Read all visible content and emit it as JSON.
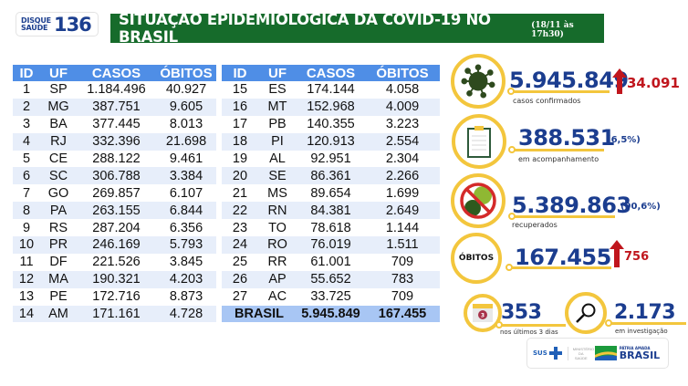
{
  "header": {
    "logo_line1": "DISQUE",
    "logo_line2": "SAÚDE",
    "logo_number": "136",
    "title": "SITUAÇÃO EPIDEMIOLÓGICA DA COVID-19 NO BRASIL",
    "date": "(18/11 às 17h30)"
  },
  "table_headers": {
    "id": "ID",
    "uf": "UF",
    "casos": "CASOS",
    "obitos": "ÓBITOS"
  },
  "left_rows": [
    {
      "id": "1",
      "uf": "SP",
      "casos": "1.184.496",
      "obitos": "40.927"
    },
    {
      "id": "2",
      "uf": "MG",
      "casos": "387.751",
      "obitos": "9.605"
    },
    {
      "id": "3",
      "uf": "BA",
      "casos": "377.445",
      "obitos": "8.013"
    },
    {
      "id": "4",
      "uf": "RJ",
      "casos": "332.396",
      "obitos": "21.698"
    },
    {
      "id": "5",
      "uf": "CE",
      "casos": "288.122",
      "obitos": "9.461"
    },
    {
      "id": "6",
      "uf": "SC",
      "casos": "306.788",
      "obitos": "3.384"
    },
    {
      "id": "7",
      "uf": "GO",
      "casos": "269.857",
      "obitos": "6.107"
    },
    {
      "id": "8",
      "uf": "PA",
      "casos": "263.155",
      "obitos": "6.844"
    },
    {
      "id": "9",
      "uf": "RS",
      "casos": "287.204",
      "obitos": "6.356"
    },
    {
      "id": "10",
      "uf": "PR",
      "casos": "246.169",
      "obitos": "5.793"
    },
    {
      "id": "11",
      "uf": "DF",
      "casos": "221.526",
      "obitos": "3.845"
    },
    {
      "id": "12",
      "uf": "MA",
      "casos": "190.321",
      "obitos": "4.203"
    },
    {
      "id": "13",
      "uf": "PE",
      "casos": "172.716",
      "obitos": "8.873"
    },
    {
      "id": "14",
      "uf": "AM",
      "casos": "171.161",
      "obitos": "4.728"
    }
  ],
  "right_rows": [
    {
      "id": "15",
      "uf": "ES",
      "casos": "174.144",
      "obitos": "4.058"
    },
    {
      "id": "16",
      "uf": "MT",
      "casos": "152.968",
      "obitos": "4.009"
    },
    {
      "id": "17",
      "uf": "PB",
      "casos": "140.355",
      "obitos": "3.223"
    },
    {
      "id": "18",
      "uf": "PI",
      "casos": "120.913",
      "obitos": "2.554"
    },
    {
      "id": "19",
      "uf": "AL",
      "casos": "92.951",
      "obitos": "2.304"
    },
    {
      "id": "20",
      "uf": "SE",
      "casos": "86.361",
      "obitos": "2.266"
    },
    {
      "id": "21",
      "uf": "MS",
      "casos": "89.654",
      "obitos": "1.699"
    },
    {
      "id": "22",
      "uf": "RN",
      "casos": "84.381",
      "obitos": "2.649"
    },
    {
      "id": "23",
      "uf": "TO",
      "casos": "78.618",
      "obitos": "1.144"
    },
    {
      "id": "24",
      "uf": "RO",
      "casos": "76.019",
      "obitos": "1.511"
    },
    {
      "id": "25",
      "uf": "RR",
      "casos": "61.001",
      "obitos": "709"
    },
    {
      "id": "26",
      "uf": "AP",
      "casos": "55.652",
      "obitos": "783"
    },
    {
      "id": "27",
      "uf": "AC",
      "casos": "33.725",
      "obitos": "709"
    }
  ],
  "total_row": {
    "label": "BRASIL",
    "casos": "5.945.849",
    "obitos": "167.455"
  },
  "stats": {
    "confirmed": {
      "value": "5.945.849",
      "delta": "34.091",
      "label": "casos confirmados",
      "icon": "virus-icon"
    },
    "monitoring": {
      "value": "388.531",
      "pct": "(6,5%)",
      "label": "em acompanhamento",
      "icon": "clipboard-icon"
    },
    "recovered": {
      "value": "5.389.863",
      "pct": "(90,6%)",
      "label": "recuperados",
      "icon": "no-virus-icon"
    },
    "deaths": {
      "badge": "ÓBITOS",
      "value": "167.455",
      "delta": "756"
    },
    "last3days": {
      "value": "353",
      "label": "nos últimos 3 dias",
      "calendar_num": "3",
      "icon": "calendar-icon"
    },
    "investigation": {
      "value": "2.173",
      "label": "em investigação",
      "icon": "magnifier-icon"
    }
  },
  "footer": {
    "sus": "SUS",
    "ministry": "MINISTÉRIO DA SAÚDE",
    "brand_small": "PÁTRIA AMADA",
    "brand_big": "BRASIL"
  },
  "colors": {
    "header_green": "#166b2b",
    "table_header_blue": "#4f8ee6",
    "stat_blue": "#1b3d8f",
    "accent_yellow": "#f3c63d",
    "delta_red": "#c0161d"
  }
}
